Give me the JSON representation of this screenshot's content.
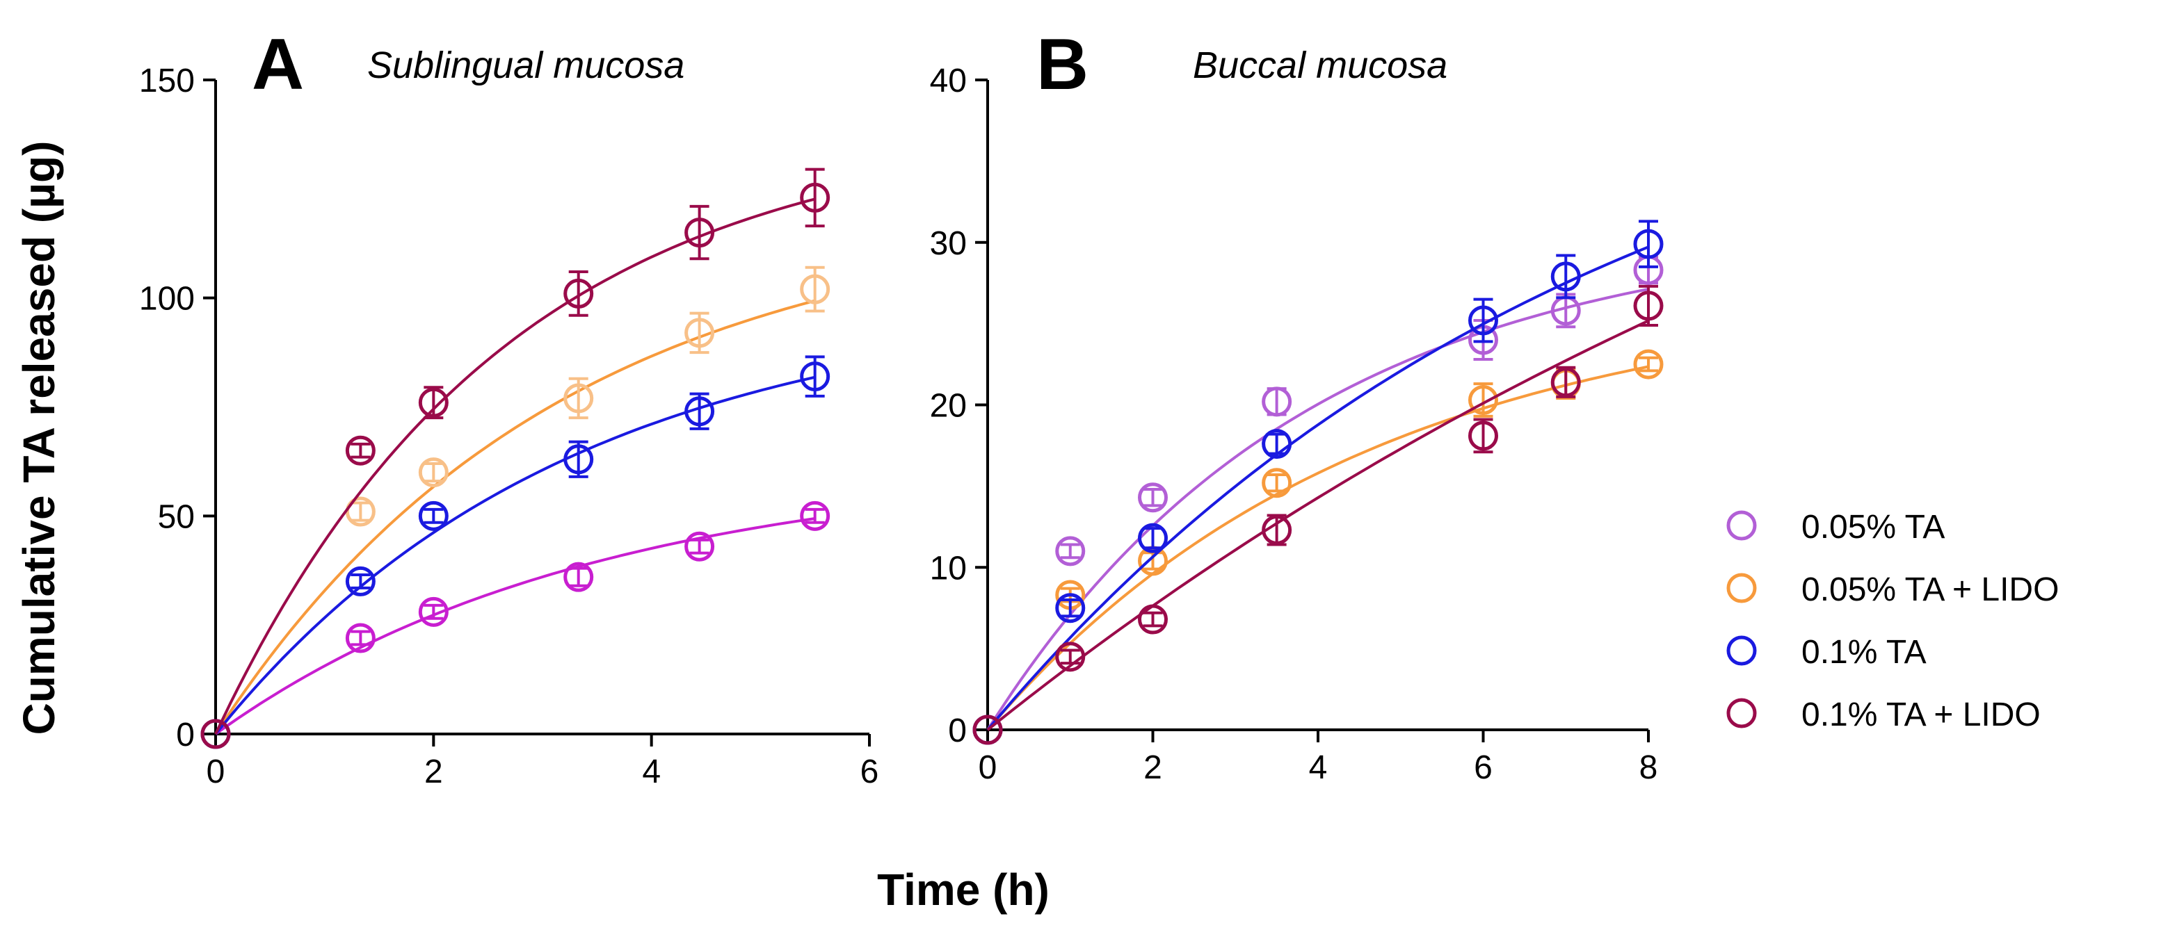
{
  "figure": {
    "ylabel": "Cumulative TA released (µg)",
    "xlabel": "Time (h)"
  },
  "legend": {
    "placement": "right",
    "entries": [
      {
        "label": "0.05% TA",
        "color": "#b25fd6"
      },
      {
        "label": "0.05% TA + LIDO",
        "color": "#f79a3c"
      },
      {
        "label": "0.1% TA",
        "color": "#1a1ae0"
      },
      {
        "label": "0.1% TA +  LIDO",
        "color": "#9a0b4a"
      }
    ]
  },
  "chart_data": [
    {
      "type": "scatter",
      "panel": "A",
      "subtitle": "Sublingual mucosa",
      "xlim": [
        0,
        6
      ],
      "ylim": [
        0,
        150
      ],
      "xticks": [
        0,
        2,
        4,
        6
      ],
      "yticks": [
        0,
        50,
        100,
        150
      ],
      "grid": false,
      "series": [
        {
          "label_ref": 0,
          "color": "#c81ed0",
          "fit_color": "#c81ed0",
          "x": [
            0,
            1.33,
            2,
            3.33,
            4.44,
            5.5
          ],
          "y": [
            0,
            22,
            28,
            36,
            43,
            50
          ],
          "err": [
            0,
            1.5,
            1.5,
            2,
            1.5,
            1.5
          ],
          "fit": {
            "ymax": 62,
            "k": 0.29
          }
        },
        {
          "label_ref": 1,
          "color": "#f8c088",
          "fit_color": "#f79a3c",
          "x": [
            0,
            1.33,
            2,
            3.33,
            4.44,
            5.5
          ],
          "y": [
            0,
            51,
            60,
            77,
            92,
            102
          ],
          "err": [
            0,
            2,
            2,
            4.5,
            4.5,
            5
          ],
          "fit": {
            "ymax": 120,
            "k": 0.32
          }
        },
        {
          "label_ref": 2,
          "color": "#1a1ae0",
          "fit_color": "#1a1ae0",
          "x": [
            0,
            1.33,
            2,
            3.33,
            4.44,
            5.5
          ],
          "y": [
            0,
            35,
            50,
            63,
            74,
            82
          ],
          "err": [
            0,
            1.5,
            1.5,
            4,
            4,
            4.5
          ],
          "fit": {
            "ymax": 100,
            "k": 0.31
          }
        },
        {
          "label_ref": 3,
          "color": "#9a0b4a",
          "fit_color": "#9a0b4a",
          "x": [
            0,
            1.33,
            2,
            3.33,
            4.44,
            5.5
          ],
          "y": [
            0,
            65,
            76,
            101,
            115,
            123
          ],
          "err": [
            0,
            1.5,
            3.5,
            5,
            6,
            6.5
          ],
          "fit": {
            "ymax": 140,
            "k": 0.38
          }
        }
      ]
    },
    {
      "type": "scatter",
      "panel": "B",
      "subtitle": "Buccal mucosa",
      "xlim": [
        0,
        8
      ],
      "ylim": [
        0,
        40
      ],
      "xticks": [
        0,
        2,
        4,
        6,
        8
      ],
      "yticks": [
        0,
        10,
        20,
        30,
        40
      ],
      "grid": false,
      "series": [
        {
          "label_ref": 0,
          "color": "#b25fd6",
          "fit_color": "#b25fd6",
          "x": [
            0,
            1,
            2,
            3.5,
            6,
            7,
            8
          ],
          "y": [
            0,
            11,
            14.3,
            20.2,
            24,
            25.8,
            28.3
          ],
          "err": [
            0,
            0.4,
            0.5,
            0.8,
            1.2,
            1.0,
            0.8
          ],
          "fit": {
            "ymax": 31,
            "k": 0.26
          }
        },
        {
          "label_ref": 1,
          "color": "#f79a3c",
          "fit_color": "#f79a3c",
          "x": [
            0,
            1,
            2,
            3.5,
            6,
            7,
            8
          ],
          "y": [
            0,
            8.3,
            10.4,
            15.2,
            20.3,
            21.3,
            22.5
          ],
          "err": [
            0,
            0.4,
            0.5,
            0.5,
            1.0,
            0.9,
            0.4
          ],
          "fit": {
            "ymax": 27,
            "k": 0.22
          }
        },
        {
          "label_ref": 2,
          "color": "#1a1ae0",
          "fit_color": "#1a1ae0",
          "x": [
            0,
            1,
            2,
            3.5,
            6,
            7,
            8
          ],
          "y": [
            0,
            7.5,
            11.8,
            17.6,
            25.2,
            27.9,
            29.9
          ],
          "err": [
            0,
            0.5,
            0.6,
            0.6,
            1.3,
            1.3,
            1.4
          ],
          "fit": {
            "ymax": 45,
            "k": 0.135
          }
        },
        {
          "label_ref": 3,
          "color": "#9a0b4a",
          "fit_color": "#9a0b4a",
          "x": [
            0,
            1,
            2,
            3.5,
            6,
            7,
            8
          ],
          "y": [
            0,
            4.5,
            6.8,
            12.3,
            18.1,
            21.4,
            26.1
          ],
          "err": [
            0,
            0.4,
            0.4,
            0.9,
            1.0,
            0.9,
            1.2
          ],
          "fit": {
            "ymax": 60,
            "k": 0.068
          }
        }
      ]
    }
  ]
}
